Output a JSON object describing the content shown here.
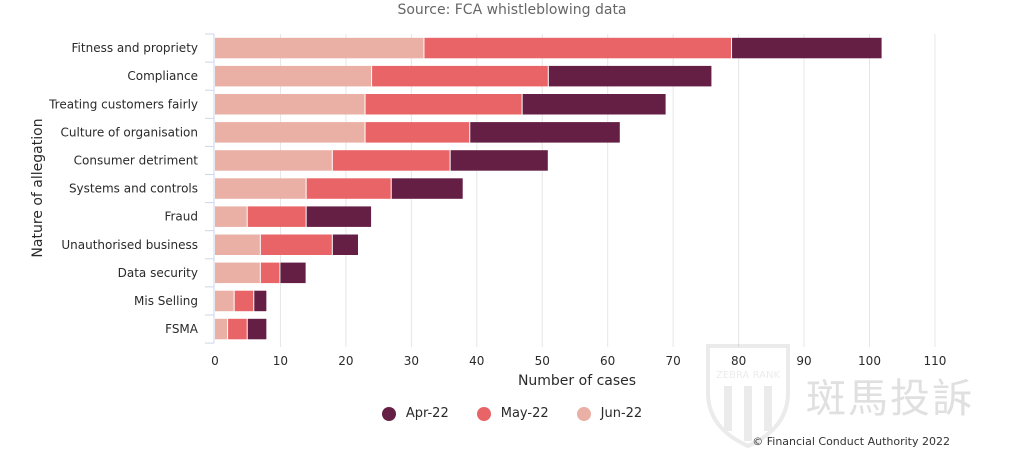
{
  "chart_data": {
    "type": "bar",
    "orientation": "horizontal",
    "stacked": true,
    "title": "",
    "subtitle": "Source: FCA whistleblowing data",
    "xlabel": "Number of cases",
    "ylabel": "Nature of allegation",
    "xlim": [
      0,
      115
    ],
    "xticks": [
      0,
      10,
      20,
      30,
      40,
      50,
      60,
      70,
      80,
      90,
      100,
      110
    ],
    "grid": true,
    "legend_position": "bottom",
    "categories": [
      "Fitness and propriety",
      "Compliance",
      "Treating customers fairly",
      "Culture of organisation",
      "Consumer detriment",
      "Systems and controls",
      "Fraud",
      "Unauthorised business",
      "Data security",
      "Mis Selling",
      "FSMA"
    ],
    "series": [
      {
        "name": "Jun-22",
        "color": "#eab0a6",
        "values": [
          32,
          24,
          23,
          23,
          18,
          14,
          5,
          7,
          7,
          3,
          2
        ]
      },
      {
        "name": "May-22",
        "color": "#e96467",
        "values": [
          47,
          27,
          24,
          16,
          18,
          13,
          9,
          11,
          3,
          3,
          3
        ]
      },
      {
        "name": "Apr-22",
        "color": "#651f44",
        "values": [
          23,
          25,
          22,
          23,
          15,
          11,
          10,
          4,
          4,
          2,
          3
        ]
      }
    ]
  },
  "legend": [
    {
      "name": "Apr-22",
      "color": "#651f44"
    },
    {
      "name": "May-22",
      "color": "#e96467"
    },
    {
      "name": "Jun-22",
      "color": "#eab0a6"
    }
  ],
  "credit": "© Financial Conduct Authority 2022",
  "watermark": {
    "brand": "ZEBRA RANK",
    "text": "斑馬投訴"
  }
}
